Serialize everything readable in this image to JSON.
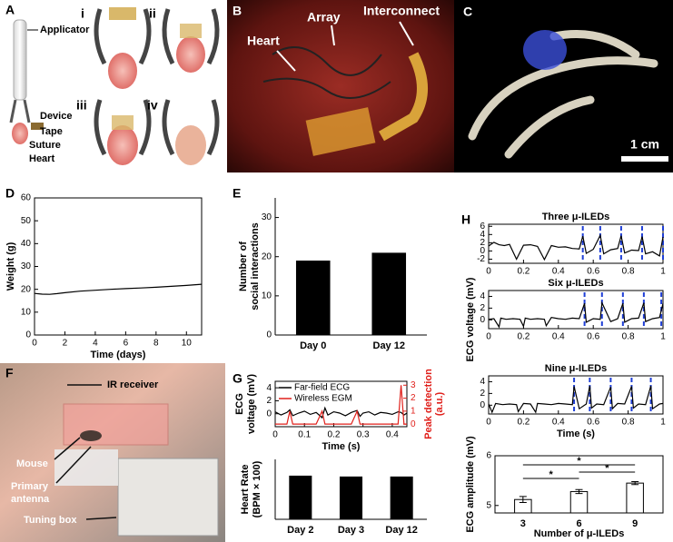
{
  "panels": [
    {
      "letter": "A",
      "labels": [
        "Applicator",
        "i",
        "ii",
        "iii",
        "iv",
        "Device",
        "Tape",
        "Suture",
        "Heart"
      ]
    },
    {
      "letter": "B",
      "labels": [
        "Heart",
        "Array",
        "Interconnect"
      ]
    },
    {
      "letter": "C",
      "labels": [
        "1 cm"
      ]
    },
    {
      "letter": "F",
      "labels": [
        "IR receiver",
        "Mouse",
        "Primary",
        "antenna",
        "Tuning box"
      ]
    }
  ],
  "panel_H": {
    "letter": "H",
    "ylabel": "ECG voltage (mV)"
  },
  "chart_data": [
    {
      "type": "line",
      "letter": "D",
      "xlabel": "Time (days)",
      "ylabel": "Weight (g)",
      "x": [
        0,
        0.5,
        1,
        1.5,
        2,
        3,
        4,
        5,
        6,
        7,
        8,
        9,
        10,
        11
      ],
      "series": [
        {
          "color": "#000000",
          "values": [
            18.2,
            17.9,
            17.8,
            18.1,
            18.5,
            19.2,
            19.6,
            20,
            20.3,
            20.6,
            20.9,
            21.3,
            21.7,
            22.2
          ]
        }
      ],
      "xlim": [
        0,
        11
      ],
      "xticks": [
        0,
        2,
        4,
        6,
        8,
        10
      ],
      "ylim": [
        0,
        60
      ],
      "yticks": [
        0,
        10,
        20,
        30,
        40,
        50,
        60
      ]
    },
    {
      "type": "bar",
      "letter": "E",
      "ylabel": [
        "Number of",
        "social interactions"
      ],
      "categories": [
        "Day 0",
        "Day 12"
      ],
      "values": [
        19,
        21
      ],
      "color": "#000000",
      "ylim": [
        0,
        35
      ],
      "yticks": [
        0,
        10,
        20,
        30
      ]
    },
    {
      "type": "line",
      "letter": "G",
      "xlabel": "Time (s)",
      "ylabel": [
        "ECG",
        "voltage (mV)"
      ],
      "y2label": [
        "Peak detection",
        "(a.u.)"
      ],
      "y2color": "#e0201b",
      "x": [
        0,
        0.02,
        0.04,
        0.05,
        0.06,
        0.08,
        0.1,
        0.12,
        0.14,
        0.16,
        0.17,
        0.18,
        0.2,
        0.22,
        0.24,
        0.26,
        0.28,
        0.29,
        0.3,
        0.32,
        0.34,
        0.36,
        0.38,
        0.4,
        0.42,
        0.43,
        0.44,
        0.45
      ],
      "series": [
        {
          "name": "Far-field ECG",
          "color": "#000000",
          "values": [
            0.3,
            -0.2,
            0.2,
            0.6,
            -0.3,
            0.1,
            0.4,
            -0.1,
            0.2,
            -0.6,
            0.9,
            -0.2,
            0.3,
            0.1,
            -0.3,
            0.2,
            0.5,
            -0.4,
            0.1,
            0.3,
            -0.2,
            0.2,
            0.1,
            -0.1,
            0.3,
            0.2,
            -0.2,
            0.1
          ]
        },
        {
          "name": "Wireless EGM",
          "color": "#e0201b",
          "axis": "y2",
          "values": [
            0,
            0,
            0,
            1,
            0,
            0,
            0,
            0,
            0,
            1,
            0,
            0,
            0,
            0,
            0,
            0,
            1,
            0,
            0,
            0,
            0,
            0,
            0,
            0,
            0,
            3,
            0,
            0
          ]
        }
      ],
      "xlim": [
        0,
        0.45
      ],
      "xticks": [
        0,
        0.1,
        0.2,
        0.3,
        0.4
      ],
      "ylim": [
        -2,
        5
      ],
      "yticks": [
        0,
        2,
        4
      ],
      "y2lim": [
        -0.2,
        3.3
      ],
      "y2ticks": [
        0,
        1,
        2,
        3
      ],
      "legend": "upper left"
    },
    {
      "type": "bar",
      "ylabel": [
        "Heart Rate",
        "(BPM × 100)"
      ],
      "categories": [
        "Day 2",
        "Day 3",
        "Day 12"
      ],
      "values": [
        5.1,
        5.0,
        5.0
      ],
      "color": "#000000",
      "ylim": [
        0,
        7
      ]
    },
    {
      "type": "line",
      "title": "Three μ-ILEDs",
      "x": [
        0,
        0.03,
        0.06,
        0.09,
        0.12,
        0.16,
        0.2,
        0.24,
        0.28,
        0.32,
        0.36,
        0.4,
        0.44,
        0.48,
        0.52,
        0.54,
        0.56,
        0.6,
        0.64,
        0.66,
        0.7,
        0.74,
        0.76,
        0.78,
        0.82,
        0.86,
        0.88,
        0.9,
        0.94,
        0.98,
        1
      ],
      "series": [
        {
          "color": "#000000",
          "values": [
            1.2,
            2.1,
            1.5,
            1.3,
            1.6,
            -2,
            1.4,
            1.5,
            1.1,
            -2.1,
            1.3,
            0.9,
            1.0,
            0.6,
            0.5,
            3.6,
            -0.6,
            0.4,
            3.8,
            -0.7,
            0.3,
            0.6,
            3.7,
            -0.5,
            0.2,
            0.1,
            3.5,
            -0.7,
            -0.2,
            -1.2,
            3.4
          ]
        }
      ],
      "peak_times": [
        0.54,
        0.64,
        0.76,
        0.88,
        1
      ],
      "peak_color": "#1f3fd6",
      "xlim": [
        0,
        1
      ],
      "xticks": [
        0,
        0.2,
        0.4,
        0.6,
        0.8,
        1
      ],
      "ylim": [
        -3,
        6.5
      ],
      "yticks": [
        -2,
        0,
        2,
        4,
        6
      ]
    },
    {
      "type": "line",
      "title": "Six μ-ILEDs",
      "x": [
        0,
        0.03,
        0.06,
        0.07,
        0.1,
        0.14,
        0.18,
        0.2,
        0.21,
        0.24,
        0.28,
        0.32,
        0.33,
        0.36,
        0.4,
        0.44,
        0.48,
        0.52,
        0.55,
        0.56,
        0.6,
        0.64,
        0.65,
        0.7,
        0.74,
        0.77,
        0.78,
        0.82,
        0.86,
        0.89,
        0.9,
        0.94,
        0.98,
        1
      ],
      "series": [
        {
          "color": "#000000",
          "values": [
            0.1,
            0.2,
            -1.2,
            0.3,
            0.1,
            0.2,
            0.1,
            -1.1,
            0.3,
            0.1,
            0.2,
            0.1,
            -1,
            0.4,
            0.2,
            0.1,
            0.3,
            0.2,
            2.8,
            -0.4,
            0.2,
            0.1,
            2.9,
            -0.3,
            0.2,
            2.8,
            -0.4,
            0.2,
            0.3,
            2.9,
            -0.3,
            0.2,
            0.4,
            2.8
          ]
        }
      ],
      "peak_times": [
        0.55,
        0.65,
        0.77,
        0.89,
        0.99
      ],
      "peak_color": "#1f3fd6",
      "xlim": [
        0,
        1
      ],
      "xticks": [
        0,
        0.2,
        0.4,
        0.6,
        0.8,
        1
      ],
      "ylim": [
        -1.5,
        5
      ],
      "yticks": [
        0,
        2,
        4
      ]
    },
    {
      "type": "line",
      "title": "Nine μ-ILEDs",
      "xlabel": "Time (s)",
      "x": [
        0,
        0.02,
        0.04,
        0.08,
        0.12,
        0.16,
        0.17,
        0.2,
        0.24,
        0.27,
        0.28,
        0.32,
        0.36,
        0.4,
        0.44,
        0.48,
        0.49,
        0.52,
        0.56,
        0.58,
        0.59,
        0.62,
        0.66,
        0.7,
        0.71,
        0.74,
        0.78,
        0.82,
        0.83,
        0.86,
        0.9,
        0.93,
        0.94,
        0.98,
        1
      ],
      "series": [
        {
          "color": "#000000",
          "values": [
            0.2,
            -1.2,
            0.3,
            0.1,
            0.2,
            0.1,
            -1.1,
            0.3,
            0.2,
            -1.2,
            0.3,
            0.2,
            0.1,
            0.3,
            0.2,
            0.1,
            3.2,
            -0.6,
            0.2,
            3.3,
            -0.5,
            0.2,
            0.1,
            3.1,
            -0.6,
            0.3,
            0.2,
            3.2,
            -0.5,
            0.2,
            0.1,
            3.3,
            -0.6,
            0.2,
            0.3
          ]
        }
      ],
      "peak_times": [
        0.49,
        0.58,
        0.7,
        0.82,
        0.93
      ],
      "peak_color": "#1f3fd6",
      "xlim": [
        0,
        1
      ],
      "xticks": [
        0,
        0.2,
        0.4,
        0.6,
        0.8,
        1
      ],
      "ylim": [
        -1.5,
        5
      ],
      "yticks": [
        0,
        2,
        4
      ]
    },
    {
      "type": "bar",
      "xlabel": "Number of μ-ILEDs",
      "ylabel": "ECG amplitude (mV)",
      "categories": [
        "3",
        "6",
        "9"
      ],
      "values": [
        5.12,
        5.28,
        5.45
      ],
      "errors": [
        0.06,
        0.04,
        0.03
      ],
      "color": "#ffffff",
      "edgecolor": "#000000",
      "annotations": [
        "*",
        "*",
        "*"
      ],
      "ylim": [
        4.85,
        6.0
      ],
      "yticks": [
        5,
        6
      ]
    }
  ]
}
